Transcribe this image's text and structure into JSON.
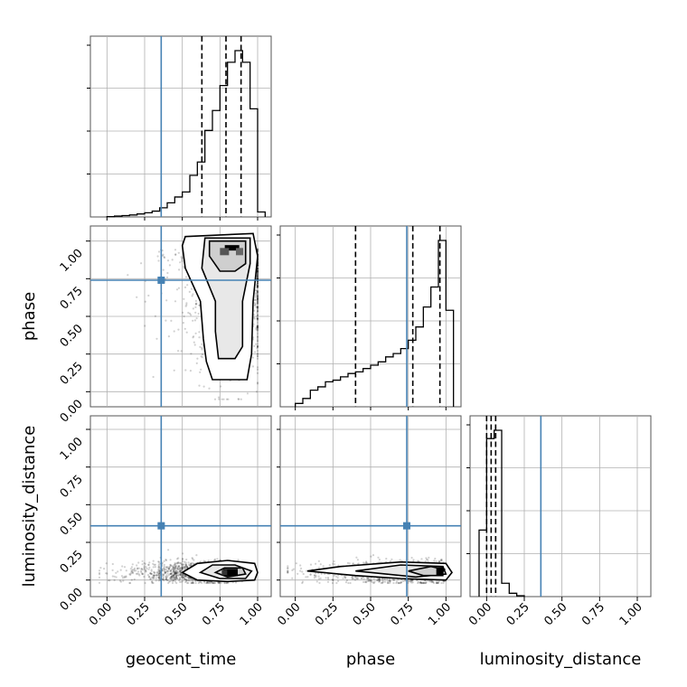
{
  "chart_data": {
    "type": "corner",
    "parameters": [
      "geocent_time",
      "phase",
      "luminosity_distance"
    ],
    "truths": {
      "geocent_time": 0.36,
      "phase": 0.74,
      "luminosity_distance": 0.36
    },
    "ranges": {
      "geocent_time": [
        -0.11,
        1.09
      ],
      "phase": [
        -0.1,
        1.1
      ],
      "luminosity_distance": [
        -0.11,
        1.09
      ]
    },
    "tick_values": [
      0,
      0.25,
      0.5,
      0.75,
      1
    ],
    "tick_labels": [
      "0.00",
      "0.25",
      "0.50",
      "0.75",
      "1.00"
    ],
    "grid": true,
    "marginals": [
      {
        "parameter": "geocent_time",
        "bins": [
          0.0,
          0.05,
          0.1,
          0.15,
          0.2,
          0.25,
          0.3,
          0.35,
          0.4,
          0.45,
          0.5,
          0.55,
          0.6,
          0.65,
          0.7,
          0.75,
          0.8,
          0.85,
          0.9,
          0.95,
          1.0,
          1.05
        ],
        "counts": [
          0.002,
          0.005,
          0.008,
          0.012,
          0.018,
          0.025,
          0.035,
          0.055,
          0.085,
          0.12,
          0.15,
          0.25,
          0.33,
          0.52,
          0.64,
          0.79,
          0.93,
          1.0,
          0.93,
          0.65,
          0.03
        ],
        "quantiles": [
          0.63,
          0.79,
          0.89
        ]
      },
      {
        "parameter": "phase",
        "bins": [
          0.0,
          0.05,
          0.1,
          0.15,
          0.2,
          0.25,
          0.3,
          0.35,
          0.4,
          0.45,
          0.5,
          0.55,
          0.6,
          0.65,
          0.7,
          0.75,
          0.8,
          0.85,
          0.9,
          0.95,
          1.0,
          1.05
        ],
        "counts": [
          0.02,
          0.05,
          0.1,
          0.12,
          0.15,
          0.16,
          0.18,
          0.2,
          0.21,
          0.23,
          0.25,
          0.27,
          0.3,
          0.32,
          0.35,
          0.4,
          0.48,
          0.6,
          0.72,
          1.0,
          0.58
        ],
        "quantiles": [
          0.4,
          0.78,
          0.96
        ]
      },
      {
        "parameter": "luminosity_distance",
        "bins": [
          -0.05,
          0.0,
          0.05,
          0.1,
          0.15,
          0.2,
          0.25
        ],
        "counts": [
          0.4,
          0.95,
          1.0,
          0.08,
          0.02,
          0.005
        ],
        "quantiles": [
          0.0,
          0.03,
          0.06
        ]
      }
    ]
  }
}
